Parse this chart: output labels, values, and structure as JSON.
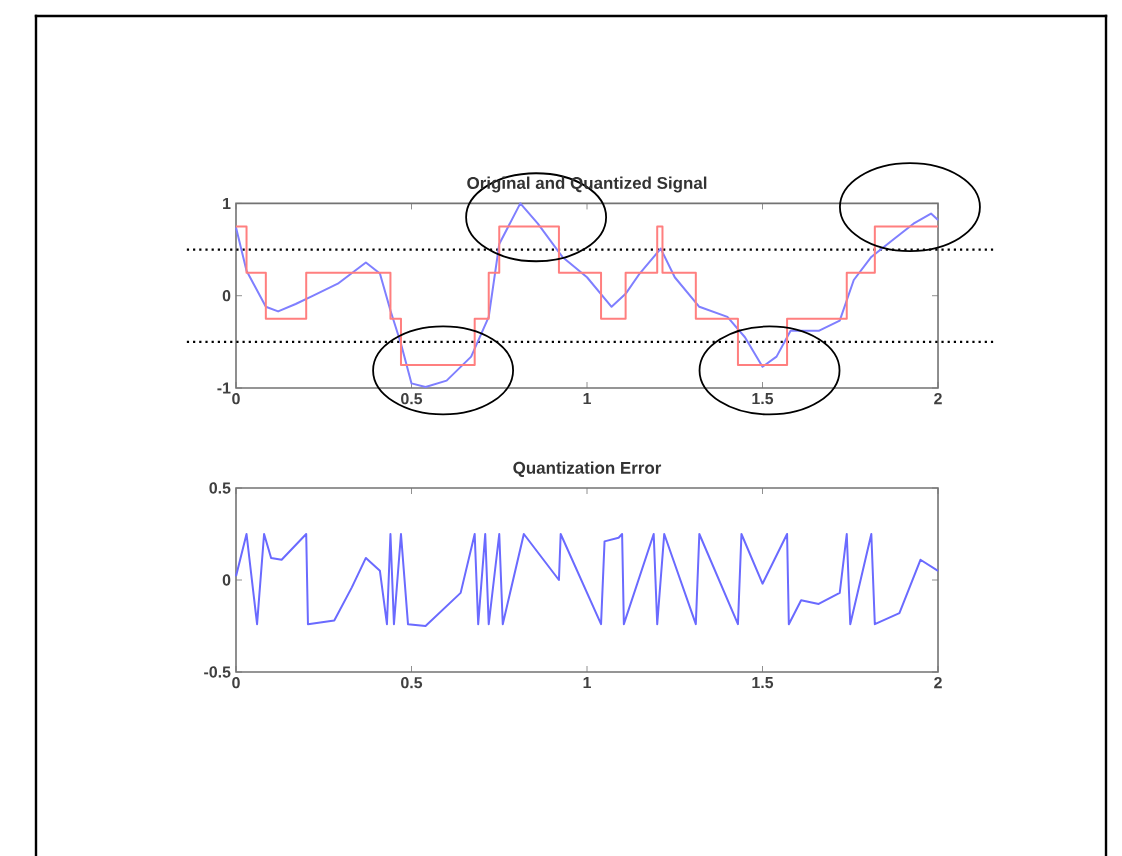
{
  "chart_data": [
    {
      "type": "line",
      "title": "Original and Quantized Signal",
      "xlim": [
        0,
        2
      ],
      "xticks": [
        0,
        0.5,
        1,
        1.5,
        2
      ],
      "ylim": [
        -1,
        1
      ],
      "yticks": [
        -1,
        0,
        1
      ],
      "grid": false,
      "series": [
        {
          "type": "line",
          "color": "#7f7fff",
          "x": [
            0,
            0.03,
            0.085,
            0.12,
            0.17,
            0.22,
            0.29,
            0.37,
            0.41,
            0.44,
            0.47,
            0.5,
            0.54,
            0.6,
            0.67,
            0.72,
            0.75,
            0.81,
            0.86,
            0.93,
            1.0,
            1.07,
            1.11,
            1.15,
            1.21,
            1.25,
            1.32,
            1.4,
            1.45,
            1.5,
            1.54,
            1.58,
            1.66,
            1.72,
            1.76,
            1.81,
            1.87,
            1.93,
            1.98,
            2.0
          ],
          "values": [
            0.74,
            0.27,
            -0.12,
            -0.17,
            -0.09,
            0,
            0.13,
            0.36,
            0.24,
            -0.16,
            -0.52,
            -0.95,
            -0.99,
            -0.92,
            -0.66,
            -0.23,
            0.56,
            1.0,
            0.78,
            0.42,
            0.2,
            -0.12,
            0.02,
            0.24,
            0.51,
            0.2,
            -0.12,
            -0.23,
            -0.45,
            -0.77,
            -0.66,
            -0.38,
            -0.38,
            -0.27,
            0.17,
            0.42,
            0.6,
            0.78,
            0.89,
            0.82
          ]
        },
        {
          "type": "step",
          "color": "#ff7f7f",
          "x": [
            0,
            0.03,
            0.085,
            0.2,
            0.44,
            0.47,
            0.68,
            0.72,
            0.75,
            0.92,
            1.04,
            1.11,
            1.2,
            1.215,
            1.31,
            1.43,
            1.57,
            1.74,
            1.82,
            2.0
          ],
          "values": [
            0.75,
            0.25,
            -0.25,
            0.25,
            -0.25,
            -0.75,
            -0.25,
            0.25,
            0.75,
            0.25,
            -0.25,
            0.25,
            0.75,
            0.25,
            -0.25,
            -0.75,
            -0.25,
            0.25,
            0.75,
            0.75
          ]
        }
      ],
      "ref_lines": [
        {
          "axis": "y",
          "value": 0.5,
          "color": "#000000",
          "line_style": "dotted"
        },
        {
          "axis": "y",
          "value": -0.5,
          "color": "#000000",
          "line_style": "dotted"
        }
      ]
    },
    {
      "type": "line",
      "title": "Quantization Error",
      "xlim": [
        0,
        2
      ],
      "xticks": [
        0,
        0.5,
        1,
        1.5,
        2
      ],
      "ylim": [
        -0.5,
        0.5
      ],
      "yticks": [
        -0.5,
        0,
        0.5
      ],
      "grid": false,
      "series": [
        {
          "type": "line",
          "color": "#6a6aff",
          "x": [
            0,
            0.03,
            0.06,
            0.08,
            0.1,
            0.13,
            0.2,
            0.205,
            0.28,
            0.33,
            0.37,
            0.41,
            0.43,
            0.44,
            0.45,
            0.47,
            0.49,
            0.54,
            0.64,
            0.68,
            0.69,
            0.71,
            0.72,
            0.75,
            0.76,
            0.82,
            0.92,
            0.925,
            1.04,
            1.05,
            1.09,
            1.1,
            1.105,
            1.19,
            1.2,
            1.22,
            1.31,
            1.32,
            1.43,
            1.44,
            1.5,
            1.57,
            1.575,
            1.61,
            1.66,
            1.72,
            1.74,
            1.75,
            1.81,
            1.82,
            1.89,
            1.95,
            2.0
          ],
          "values": [
            0.02,
            0.25,
            -0.24,
            0.25,
            0.12,
            0.11,
            0.25,
            -0.24,
            -0.22,
            -0.04,
            0.12,
            0.05,
            -0.24,
            0.25,
            -0.24,
            0.25,
            -0.24,
            -0.25,
            -0.07,
            0.25,
            -0.24,
            0.25,
            -0.24,
            0.25,
            -0.24,
            0.25,
            0,
            0.25,
            -0.24,
            0.21,
            0.23,
            0.25,
            -0.24,
            0.25,
            -0.24,
            0.25,
            -0.24,
            0.25,
            -0.24,
            0.25,
            -0.02,
            0.25,
            -0.24,
            -0.11,
            -0.13,
            -0.07,
            0.25,
            -0.24,
            0.25,
            -0.24,
            -0.18,
            0.11,
            0.05
          ]
        }
      ]
    }
  ]
}
